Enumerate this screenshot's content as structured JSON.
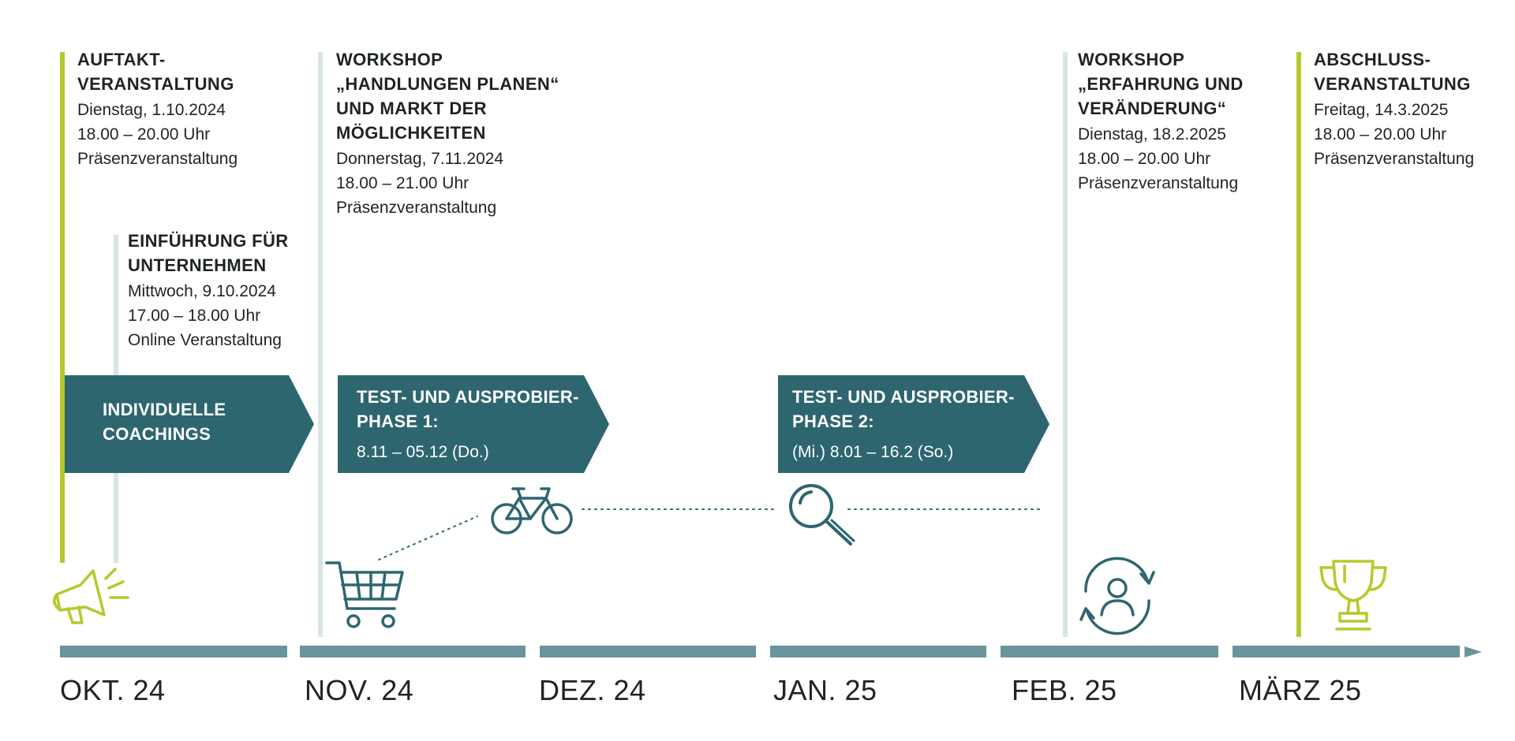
{
  "events": [
    {
      "title": "AUFTAKT-\nVERANSTALTUNG",
      "date": "Dienstag, 1.10.2024",
      "time": "18.00 – 20.00 Uhr",
      "mode": "Präsenzveranstaltung"
    },
    {
      "title": "EINFÜHRUNG FÜR\nUNTERNEHMEN",
      "date": "Mittwoch, 9.10.2024",
      "time": "17.00 – 18.00 Uhr",
      "mode": "Online Veranstaltung"
    },
    {
      "title": "WORKSHOP\n„HANDLUNGEN PLANEN“\nUND MARKT DER\nMÖGLICHKEITEN",
      "date": "Donnerstag, 7.11.2024",
      "time": "18.00 – 21.00 Uhr",
      "mode": "Präsenzveranstaltung"
    },
    {
      "title": "WORKSHOP\n„ERFAHRUNG UND\nVERÄNDERUNG“",
      "date": "Dienstag, 18.2.2025",
      "time": "18.00 – 20.00 Uhr",
      "mode": "Präsenzveranstaltung"
    },
    {
      "title": "ABSCHLUSS-\nVERANSTALTUNG",
      "date": "Freitag, 14.3.2025",
      "time": "18.00 – 20.00 Uhr",
      "mode": "Präsenzveranstaltung"
    }
  ],
  "phases": [
    {
      "title": "INDIVIDUELLE\nCOACHINGS",
      "dates": ""
    },
    {
      "title": "TEST- UND AUSPROBIER-\nPHASE 1:",
      "dates": "8.11 – 05.12 (Do.)"
    },
    {
      "title": "TEST- UND AUSPROBIER-\nPHASE 2:",
      "dates": "(Mi.) 8.01 – 16.2 (So.)"
    }
  ],
  "months": [
    "OKT. 24",
    "NOV. 24",
    "DEZ. 24",
    "JAN. 25",
    "FEB. 25",
    "MÄRZ 25"
  ],
  "icons": [
    "megaphone-icon",
    "shopping-cart-icon",
    "bicycle-icon",
    "magnifier-icon",
    "person-cycle-icon",
    "trophy-icon"
  ],
  "colors": {
    "accent_green": "#b7c82b",
    "petrol": "#2e6670",
    "axis": "#6a949c",
    "pale_line": "#d7e5e7"
  }
}
